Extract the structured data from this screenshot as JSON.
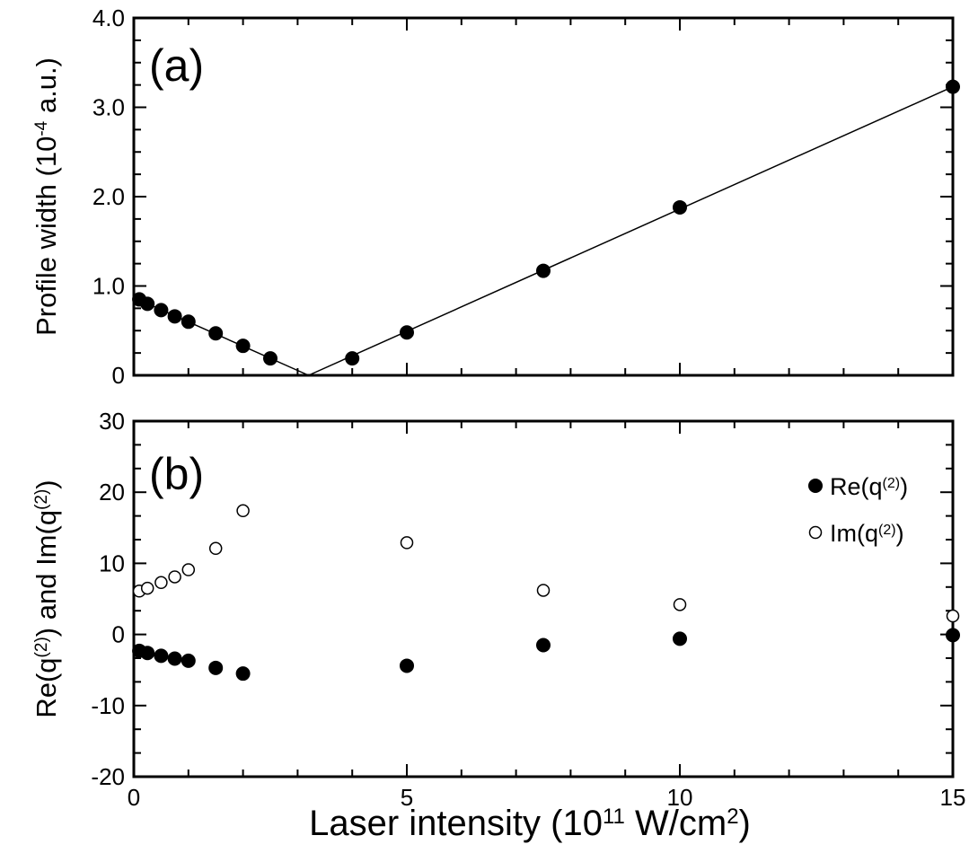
{
  "chart_data": [
    {
      "type": "scatter",
      "panel_label": "(a)",
      "xlabel": "Laser intensity (10^11 W/cm^2)",
      "ylabel": "Profile width (10^-4 a.u.)",
      "xlim": [
        0,
        15
      ],
      "ylim": [
        0,
        4.0
      ],
      "x_ticks": [
        "0",
        "5",
        "10",
        "15"
      ],
      "y_ticks": [
        "0",
        "1.0",
        "2.0",
        "3.0",
        "4.0"
      ],
      "series": [
        {
          "marker": "filled-circle",
          "x": [
            0.1,
            0.25,
            0.5,
            0.75,
            1.0,
            1.5,
            2.0,
            2.5,
            4.0,
            5.0,
            7.5,
            10.0,
            15.0
          ],
          "values": [
            0.85,
            0.8,
            0.73,
            0.66,
            0.6,
            0.47,
            0.33,
            0.19,
            0.19,
            0.48,
            1.17,
            1.88,
            3.23
          ]
        }
      ],
      "fit_lines": [
        {
          "x": [
            0,
            3.2
          ],
          "values": [
            0.87,
            0.0
          ]
        },
        {
          "x": [
            3.2,
            15
          ],
          "values": [
            0.0,
            3.23
          ]
        }
      ]
    },
    {
      "type": "scatter",
      "panel_label": "(b)",
      "xlabel": "Laser intensity (10^11 W/cm^2)",
      "ylabel": "Re(q^(2)) and Im(q^(2))",
      "xlim": [
        0,
        15
      ],
      "ylim": [
        -20,
        30
      ],
      "x_ticks": [
        "0",
        "5",
        "10",
        "15"
      ],
      "y_ticks": [
        "-20",
        "-10",
        "0",
        "10",
        "20",
        "30"
      ],
      "legend_position": "top-right",
      "series": [
        {
          "name": "Re(q^(2))",
          "marker": "filled-circle",
          "x": [
            0.1,
            0.25,
            0.5,
            0.75,
            1.0,
            1.5,
            2.0,
            5.0,
            7.5,
            10.0,
            15.0
          ],
          "values": [
            -2.3,
            -2.6,
            -3.0,
            -3.4,
            -3.7,
            -4.7,
            -5.5,
            -4.4,
            -1.5,
            -0.6,
            -0.1
          ]
        },
        {
          "name": "Im(q^(2))",
          "marker": "open-circle",
          "x": [
            0.1,
            0.25,
            0.5,
            0.75,
            1.0,
            1.5,
            2.0,
            5.0,
            7.5,
            10.0,
            15.0
          ],
          "values": [
            6.1,
            6.5,
            7.3,
            8.1,
            9.1,
            12.1,
            17.4,
            12.9,
            6.2,
            4.2,
            2.6
          ]
        }
      ]
    }
  ]
}
